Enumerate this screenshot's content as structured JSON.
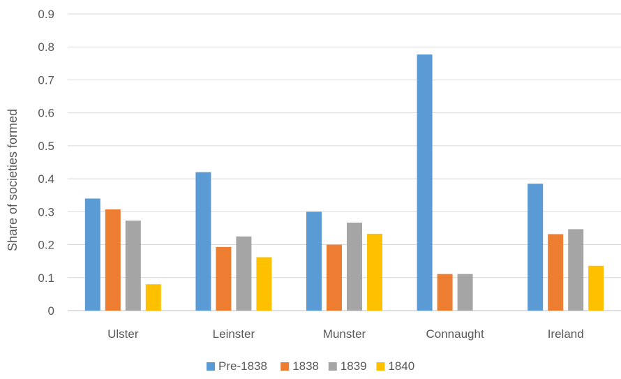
{
  "chart_data": {
    "type": "bar",
    "title": "",
    "xlabel": "",
    "ylabel": "Share of societies formed",
    "ylim": [
      0,
      0.9
    ],
    "yticks": [
      "0",
      "0.1",
      "0.2",
      "0.3",
      "0.4",
      "0.5",
      "0.6",
      "0.7",
      "0.8",
      "0.9"
    ],
    "grid": true,
    "legend_position": "bottom",
    "categories": [
      "Ulster",
      "Leinster",
      "Munster",
      "Connaught",
      "Ireland"
    ],
    "series": [
      {
        "name": "Pre-1838",
        "color": "#5B9BD5",
        "values": [
          0.34,
          0.42,
          0.3,
          0.777,
          0.385
        ]
      },
      {
        "name": "1838",
        "color": "#ED7D31",
        "values": [
          0.307,
          0.193,
          0.2,
          0.111,
          0.232
        ]
      },
      {
        "name": "1839",
        "color": "#A5A5A5",
        "values": [
          0.273,
          0.225,
          0.267,
          0.111,
          0.247
        ]
      },
      {
        "name": "1840",
        "color": "#FFC000",
        "values": [
          0.08,
          0.162,
          0.233,
          0,
          0.136
        ]
      }
    ]
  }
}
